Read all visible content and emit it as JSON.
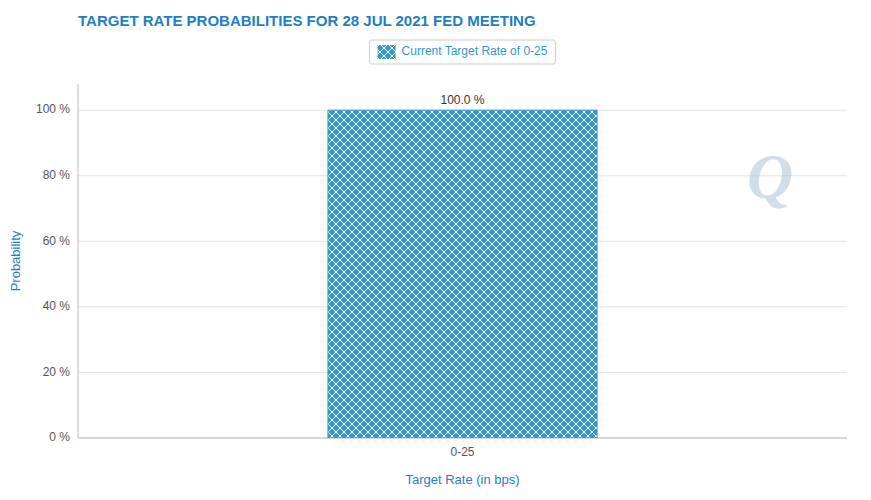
{
  "chart_data": {
    "type": "bar",
    "title": "TARGET RATE PROBABILITIES FOR 28 JUL 2021 FED MEETING",
    "xlabel": "Target Rate (in bps)",
    "ylabel": "Probability",
    "categories": [
      "0-25"
    ],
    "series": [
      {
        "name": "Current Target Rate of 0-25",
        "color": "#3399cc",
        "values": [
          100.0
        ],
        "value_labels": [
          "100.0 %"
        ]
      }
    ],
    "ylim": [
      0,
      108
    ],
    "yticks": [
      {
        "value": 0,
        "label": "0 %"
      },
      {
        "value": 20,
        "label": "20 %"
      },
      {
        "value": 40,
        "label": "40 %"
      },
      {
        "value": 60,
        "label": "60 %"
      },
      {
        "value": 80,
        "label": "80 %"
      },
      {
        "value": 100,
        "label": "100 %"
      }
    ],
    "grid": true,
    "legend": "top",
    "data_labels": true,
    "annotations": [
      "Q"
    ]
  }
}
